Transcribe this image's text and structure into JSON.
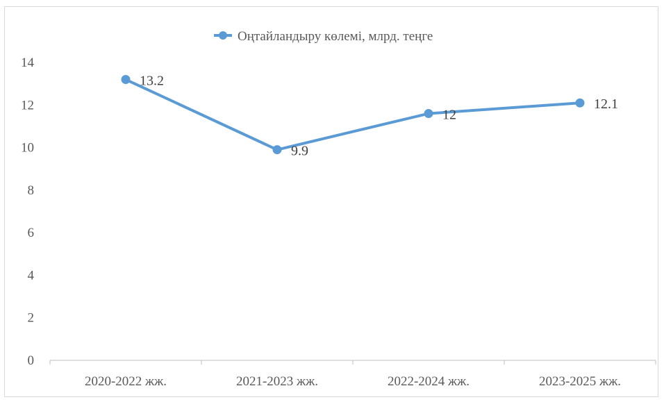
{
  "chart_data": {
    "type": "line",
    "title": "",
    "xlabel": "",
    "ylabel": "",
    "categories": [
      "2020-2022 жж.",
      "2021-2023 жж.",
      "2022-2024 жж.",
      "2023-2025 жж."
    ],
    "series": [
      {
        "name": "Оңтайландыру көлемі, млрд. теңге",
        "values": [
          13.2,
          9.9,
          11.6,
          12.1
        ],
        "data_labels": [
          "13.2",
          "9.9",
          "12",
          "12.1"
        ],
        "color": "#5b9bd5"
      }
    ],
    "ylim": [
      0,
      14
    ],
    "y_ticks": [
      0,
      2,
      4,
      6,
      8,
      10,
      12,
      14
    ],
    "y_tick_labels": [
      "0",
      "2",
      "4",
      "6",
      "8",
      "10",
      "12",
      "14"
    ],
    "grid": false,
    "legend_position": "top-center"
  }
}
